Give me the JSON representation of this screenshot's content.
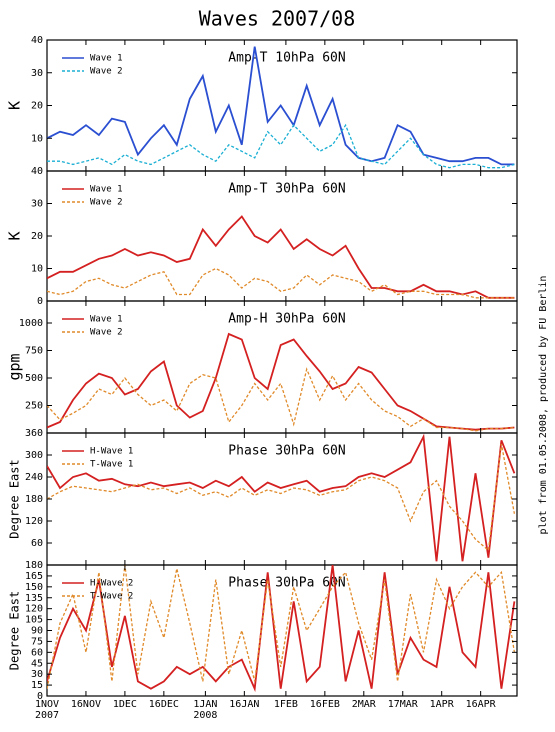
{
  "title": "Waves 2007/08",
  "side_note": "plot from 01.05.2008, produced by FU Berlin",
  "chart_data": [
    {
      "type": "line",
      "title": "Amp-T 10hPa 60N",
      "ylabel": "K",
      "ylim": [
        0,
        40
      ],
      "yticks": [
        10,
        20,
        30,
        40
      ],
      "legend": "upper left",
      "series": [
        {
          "name": "Wave 1",
          "color": "#2b4fd1",
          "dashed": false,
          "values": [
            10,
            12,
            11,
            14,
            11,
            16,
            15,
            5,
            10,
            14,
            8,
            22,
            29,
            12,
            20,
            8,
            38,
            15,
            20,
            14,
            26,
            14,
            22,
            8,
            4,
            3,
            4,
            14,
            12,
            5,
            4,
            3,
            3,
            4,
            4,
            2,
            2
          ]
        },
        {
          "name": "Wave 2",
          "color": "#1aafd3",
          "dashed": true,
          "values": [
            3,
            3,
            2,
            3,
            4,
            2,
            5,
            3,
            2,
            4,
            6,
            8,
            5,
            3,
            8,
            6,
            4,
            12,
            8,
            14,
            10,
            6,
            8,
            14,
            4,
            3,
            2,
            6,
            10,
            5,
            2,
            1,
            2,
            2,
            1,
            1,
            2
          ]
        }
      ]
    },
    {
      "type": "line",
      "title": "Amp-T 30hPa 60N",
      "ylabel": "K",
      "ylim": [
        0,
        40
      ],
      "yticks": [
        0,
        10,
        20,
        30,
        40
      ],
      "legend": "upper left",
      "series": [
        {
          "name": "Wave 1",
          "color": "#d42020",
          "dashed": false,
          "values": [
            7,
            9,
            9,
            11,
            13,
            14,
            16,
            14,
            15,
            14,
            12,
            13,
            22,
            17,
            22,
            26,
            20,
            18,
            22,
            16,
            19,
            16,
            14,
            17,
            10,
            4,
            4,
            3,
            3,
            5,
            3,
            3,
            2,
            3,
            1,
            1,
            1
          ]
        },
        {
          "name": "Wave 2",
          "color": "#e08a2a",
          "dashed": true,
          "values": [
            3,
            2,
            3,
            6,
            7,
            5,
            4,
            6,
            8,
            9,
            2,
            2,
            8,
            10,
            8,
            4,
            7,
            6,
            3,
            4,
            8,
            5,
            8,
            7,
            6,
            3,
            5,
            2,
            3,
            3,
            2,
            2,
            2,
            1,
            1,
            1,
            1
          ]
        }
      ]
    },
    {
      "type": "line",
      "title": "Amp-H 30hPa 60N",
      "ylabel": "gpm",
      "ylim": [
        0,
        1200
      ],
      "yticks": [
        250,
        500,
        750,
        1000
      ],
      "legend": "upper left",
      "series": [
        {
          "name": "Wave 1",
          "color": "#d42020",
          "dashed": false,
          "values": [
            50,
            100,
            300,
            450,
            540,
            500,
            350,
            400,
            560,
            650,
            250,
            140,
            200,
            500,
            900,
            850,
            500,
            400,
            800,
            850,
            700,
            560,
            400,
            450,
            600,
            550,
            400,
            250,
            200,
            130,
            60,
            50,
            40,
            30,
            40,
            40,
            50
          ]
        },
        {
          "name": "Wave 2",
          "color": "#e08a2a",
          "dashed": true,
          "values": [
            250,
            120,
            180,
            250,
            400,
            350,
            500,
            350,
            250,
            300,
            200,
            450,
            530,
            500,
            100,
            250,
            450,
            300,
            450,
            80,
            580,
            300,
            520,
            300,
            450,
            300,
            200,
            150,
            60,
            130,
            50,
            50,
            40,
            20,
            40,
            40,
            50
          ]
        }
      ]
    },
    {
      "type": "line",
      "title": "Phase 30hPa 60N",
      "ylabel": "Degree East",
      "ylim": [
        0,
        360
      ],
      "yticks": [
        60,
        120,
        180,
        240,
        300,
        360
      ],
      "legend": "upper left",
      "series": [
        {
          "name": "H-Wave 1",
          "color": "#d42020",
          "dashed": false,
          "values": [
            270,
            210,
            240,
            250,
            230,
            235,
            220,
            215,
            225,
            215,
            220,
            225,
            210,
            230,
            215,
            240,
            200,
            225,
            210,
            220,
            230,
            200,
            210,
            215,
            240,
            250,
            240,
            260,
            280,
            350,
            10,
            350,
            10,
            250,
            20,
            340,
            250
          ]
        },
        {
          "name": "T-Wave 1",
          "color": "#e08a2a",
          "dashed": true,
          "values": [
            180,
            200,
            215,
            210,
            205,
            200,
            210,
            220,
            205,
            210,
            195,
            210,
            190,
            200,
            185,
            210,
            190,
            205,
            195,
            210,
            205,
            190,
            200,
            205,
            230,
            240,
            230,
            210,
            120,
            200,
            230,
            160,
            120,
            70,
            40,
            330,
            140
          ]
        }
      ]
    },
    {
      "type": "line",
      "title": "Phase 30hPa 60N",
      "ylabel": "Degree East",
      "ylim": [
        0,
        180
      ],
      "yticks": [
        0,
        15,
        30,
        45,
        60,
        75,
        90,
        105,
        120,
        135,
        150,
        165,
        180
      ],
      "legend": "upper left",
      "xlim": [
        "2007-11-01",
        "2008-04-30"
      ],
      "x": [
        "2007-11-01",
        "2007-11-06",
        "2007-11-11",
        "2007-11-16",
        "2007-11-21",
        "2007-11-26",
        "2007-12-01",
        "2007-12-06",
        "2007-12-11",
        "2007-12-16",
        "2007-12-21",
        "2007-12-26",
        "2007-12-31",
        "2008-01-05",
        "2008-01-10",
        "2008-01-15",
        "2008-01-20",
        "2008-01-25",
        "2008-01-30",
        "2008-02-04",
        "2008-02-09",
        "2008-02-14",
        "2008-02-19",
        "2008-02-24",
        "2008-02-29",
        "2008-03-05",
        "2008-03-10",
        "2008-03-15",
        "2008-03-20",
        "2008-03-25",
        "2008-03-30",
        "2008-04-04",
        "2008-04-09",
        "2008-04-14",
        "2008-04-19",
        "2008-04-24",
        "2008-04-29"
      ],
      "xticks": [
        {
          "value": "2007-11-01",
          "label": "1NOV"
        },
        {
          "value": "2007-11-16",
          "label": "16NOV"
        },
        {
          "value": "2007-12-01",
          "label": "1DEC"
        },
        {
          "value": "2007-12-16",
          "label": "16DEC"
        },
        {
          "value": "2008-01-01",
          "label": "1JAN"
        },
        {
          "value": "2008-01-16",
          "label": "16JAN"
        },
        {
          "value": "2008-02-01",
          "label": "1FEB"
        },
        {
          "value": "2008-02-16",
          "label": "16FEB"
        },
        {
          "value": "2008-03-02",
          "label": "2MAR"
        },
        {
          "value": "2008-03-17",
          "label": "17MAR"
        },
        {
          "value": "2008-04-01",
          "label": "1APR"
        },
        {
          "value": "2008-04-16",
          "label": "16APR"
        }
      ],
      "xticks_secondary": [
        {
          "value": "2007-11-01",
          "label": "2007"
        },
        {
          "value": "2008-01-01",
          "label": "2008"
        }
      ],
      "series": [
        {
          "name": "H-Wave 2",
          "color": "#d42020",
          "dashed": false,
          "values": [
            20,
            80,
            120,
            90,
            160,
            40,
            110,
            20,
            10,
            20,
            40,
            30,
            40,
            20,
            40,
            50,
            10,
            170,
            10,
            130,
            20,
            40,
            180,
            20,
            90,
            10,
            170,
            30,
            80,
            50,
            40,
            150,
            60,
            40,
            170,
            10,
            130
          ]
        },
        {
          "name": "T-Wave 2",
          "color": "#e08a2a",
          "dashed": true,
          "values": [
            10,
            100,
            140,
            60,
            170,
            20,
            180,
            30,
            130,
            80,
            175,
            100,
            20,
            160,
            30,
            90,
            20,
            160,
            40,
            150,
            90,
            120,
            150,
            170,
            100,
            50,
            160,
            20,
            140,
            60,
            160,
            120,
            150,
            170,
            150,
            170,
            60
          ]
        }
      ]
    }
  ]
}
